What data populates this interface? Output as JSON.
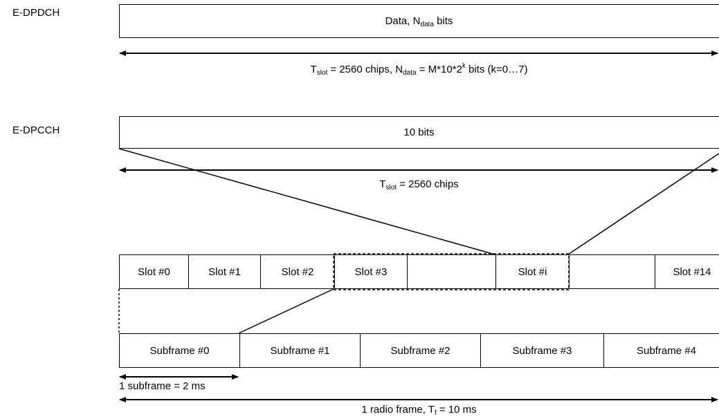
{
  "channels": {
    "edpdch": "E-DPDCH",
    "edpcch": "E-DPCCH"
  },
  "edpdch_box": {
    "label_prefix": "Data, N",
    "label_sub": "data",
    "label_suffix": " bits"
  },
  "edpdch_span": {
    "t_base": "T",
    "t_sub": "slot",
    "mid": " = 2560 chips, N",
    "n_sub": "data",
    "expr": " = M*10*2",
    "exp": "k",
    "end": " bits (k=0…7)"
  },
  "edpcch_box": {
    "label": "10 bits"
  },
  "edpcch_span": {
    "t_base": "T",
    "t_sub": "slot",
    "end": " = 2560 chips"
  },
  "slots": [
    "Slot #0",
    "Slot #1",
    "Slot #2",
    "Slot #3",
    "",
    "Slot #i",
    "",
    "Slot #14"
  ],
  "subframes": [
    "Subframe #0",
    "Subframe #1",
    "Subframe #2",
    "Subframe #3",
    "Subframe #4"
  ],
  "subframe_span": "1 subframe = 2 ms",
  "frame_span": {
    "prefix": "1 radio frame, T",
    "sub": "f",
    "end": " = 10 ms"
  }
}
